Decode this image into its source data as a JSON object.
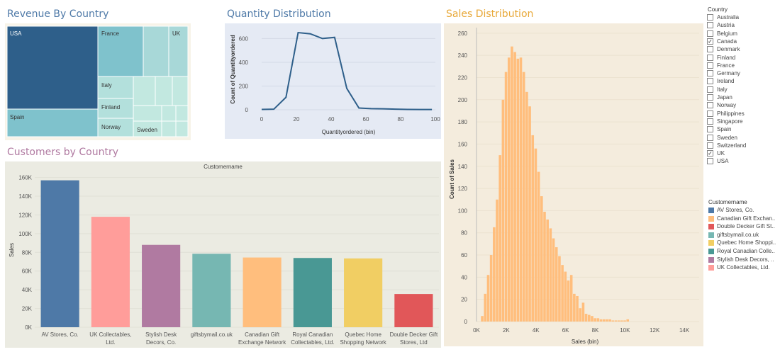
{
  "treemap": {
    "title": "Revenue By Country",
    "title_color": "#4e79a7",
    "labels": [
      {
        "text": "USA"
      },
      {
        "text": "France"
      },
      {
        "text": "UK"
      },
      {
        "text": "Italy"
      },
      {
        "text": "Finland"
      },
      {
        "text": "Norway"
      },
      {
        "text": "Spain"
      },
      {
        "text": "Sweden"
      }
    ]
  },
  "quantity": {
    "title": "Quantity Distribution",
    "title_color": "#4e79a7"
  },
  "sales": {
    "title": "Sales Distribution",
    "title_color": "#e8a838"
  },
  "customers": {
    "title": "Customers by Country",
    "title_color": "#b07aa1",
    "panel_header": "Customername"
  },
  "country_filter": {
    "title": "Country",
    "items": [
      {
        "label": "Australia",
        "checked": false
      },
      {
        "label": "Austria",
        "checked": false
      },
      {
        "label": "Belgium",
        "checked": false
      },
      {
        "label": "Canada",
        "checked": true
      },
      {
        "label": "Denmark",
        "checked": false
      },
      {
        "label": "Finland",
        "checked": false
      },
      {
        "label": "France",
        "checked": false
      },
      {
        "label": "Germany",
        "checked": false
      },
      {
        "label": "Ireland",
        "checked": false
      },
      {
        "label": "Italy",
        "checked": false
      },
      {
        "label": "Japan",
        "checked": false
      },
      {
        "label": "Norway",
        "checked": false
      },
      {
        "label": "Philippines",
        "checked": false
      },
      {
        "label": "Singapore",
        "checked": false
      },
      {
        "label": "Spain",
        "checked": false
      },
      {
        "label": "Sweden",
        "checked": false
      },
      {
        "label": "Switzerland",
        "checked": false
      },
      {
        "label": "UK",
        "checked": true
      },
      {
        "label": "USA",
        "checked": false
      }
    ]
  },
  "customer_legend": {
    "title": "Customername",
    "items": [
      {
        "label": "AV Stores, Co.",
        "color": "#4e79a7"
      },
      {
        "label": "Canadian Gift Exchan..",
        "color": "#ffbe7d"
      },
      {
        "label": "Double Decker Gift St..",
        "color": "#e15759"
      },
      {
        "label": "giftsbymail.co.uk",
        "color": "#76b7b2"
      },
      {
        "label": "Quebec Home Shoppi..",
        "color": "#f1ce63"
      },
      {
        "label": "Royal Canadian Colle..",
        "color": "#499894"
      },
      {
        "label": "Stylish Desk Decors, ..",
        "color": "#b07aa1"
      },
      {
        "label": "UK Collectables, Ltd.",
        "color": "#ff9d9a"
      }
    ]
  },
  "chart_data": [
    {
      "type": "treemap",
      "title": "Revenue By Country",
      "categories": [
        "USA",
        "Spain",
        "France",
        "UK",
        "Italy",
        "Finland",
        "Norway",
        "Sweden"
      ]
    },
    {
      "type": "line",
      "title": "Quantity Distribution",
      "xlabel": "Quantityordered (bin)",
      "ylabel": "Count of Quantityordered",
      "x": [
        0,
        7,
        14,
        21,
        28,
        35,
        42,
        49,
        56,
        63,
        70,
        77,
        84,
        91,
        98
      ],
      "values": [
        3,
        5,
        105,
        650,
        640,
        600,
        610,
        180,
        15,
        10,
        8,
        5,
        3,
        2,
        2
      ],
      "xlim": [
        0,
        100
      ],
      "ylim": [
        0,
        680
      ],
      "xticks": [
        0,
        20,
        40,
        60,
        80,
        100
      ],
      "yticks": [
        0,
        200,
        400,
        600
      ],
      "color": "#2e5f8a"
    },
    {
      "type": "bar",
      "title": "Sales Distribution",
      "xlabel": "Sales (bin)",
      "ylabel": "Count of Sales",
      "bin_width": 200,
      "bin_start": 400,
      "values": [
        5,
        25,
        42,
        60,
        85,
        110,
        150,
        200,
        225,
        238,
        248,
        243,
        237,
        238,
        225,
        207,
        194,
        168,
        156,
        135,
        113,
        99,
        92,
        84,
        75,
        67,
        59,
        51,
        45,
        37,
        42,
        25,
        23,
        12,
        17,
        7,
        6,
        5,
        3,
        3,
        2,
        2,
        2,
        2,
        1,
        1,
        1,
        1,
        1,
        2
      ],
      "xlim": [
        0,
        15000
      ],
      "ylim": [
        0,
        265
      ],
      "xticks": [
        0,
        2000,
        4000,
        6000,
        8000,
        10000,
        12000,
        14000
      ],
      "xtick_labels": [
        "0K",
        "2K",
        "4K",
        "6K",
        "8K",
        "10K",
        "12K",
        "14K"
      ],
      "yticks": [
        0,
        20,
        40,
        60,
        80,
        100,
        120,
        140,
        160,
        180,
        200,
        220,
        240,
        260
      ],
      "color": "#ffbe7d"
    },
    {
      "type": "bar",
      "title": "Customers by Country",
      "xlabel": "Customername",
      "ylabel": "Sales",
      "categories": [
        "AV Stores, Co.",
        "UK Collectables, Ltd.",
        "Stylish Desk Decors, Co.",
        "giftsbymail.co.uk",
        "Canadian Gift Exchange Network",
        "Royal Canadian Collectables, Ltd.",
        "Quebec Home Shopping Network",
        "Double Decker Gift Stores, Ltd"
      ],
      "category_lines": [
        [
          "AV Stores, Co."
        ],
        [
          "UK Collectables,",
          "Ltd."
        ],
        [
          "Stylish Desk",
          "Decors, Co."
        ],
        [
          "giftsbymail.co.uk"
        ],
        [
          "Canadian Gift",
          "Exchange Network"
        ],
        [
          "Royal Canadian",
          "Collectables, Ltd."
        ],
        [
          "Quebec Home",
          "Shopping Network"
        ],
        [
          "Double Decker Gift",
          "Stores, Ltd"
        ]
      ],
      "values": [
        157000,
        118000,
        88000,
        78500,
        74500,
        74000,
        73500,
        35500
      ],
      "colors": [
        "#4e79a7",
        "#ff9d9a",
        "#b07aa1",
        "#76b7b2",
        "#ffbe7d",
        "#499894",
        "#f1ce63",
        "#e15759"
      ],
      "ylim": [
        0,
        165000
      ],
      "yticks": [
        0,
        20000,
        40000,
        60000,
        80000,
        100000,
        120000,
        140000,
        160000
      ],
      "ytick_labels": [
        "0K",
        "20K",
        "40K",
        "60K",
        "80K",
        "100K",
        "120K",
        "140K",
        "160K"
      ]
    }
  ]
}
